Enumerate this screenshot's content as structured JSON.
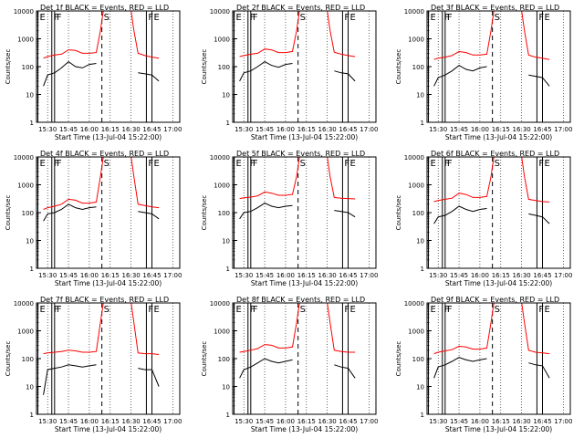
{
  "figure": {
    "xlabel": "Start Time (13-Jul-04 15:22:00)",
    "ylabel": "Counts/sec",
    "x_ticks": [
      "15:30",
      "15:45",
      "16:00",
      "16:15",
      "16:30",
      "16:45",
      "17:00"
    ],
    "y_ticks": [
      "1",
      "10",
      "100",
      "1000",
      "10000"
    ],
    "markers": [
      {
        "label": "E",
        "t": "15:23"
      },
      {
        "label": "F",
        "t": "15:33"
      },
      {
        "label": "F",
        "t": "15:35"
      },
      {
        "label": "S",
        "t": "16:09"
      },
      {
        "label": "F",
        "t": "16:41"
      },
      {
        "label": "E",
        "t": "16:45"
      }
    ],
    "colors": {
      "events": "#000000",
      "lld": "#ff0000"
    }
  },
  "chart_data": [
    {
      "type": "line",
      "title": "Det 1f BLACK = Events, RED = LLD",
      "xlabel": "Start Time (13-Jul-04 15:22:00)",
      "ylabel": "Counts/sec",
      "ylim": [
        1,
        10000
      ],
      "y_scale": "log",
      "x": [
        "15:27",
        "15:30",
        "15:35",
        "15:40",
        "15:45",
        "15:50",
        "15:55",
        "16:00",
        "16:05",
        "16:08",
        "16:10",
        "16:30",
        "16:32",
        "16:35",
        "16:40",
        "16:45",
        "16:50"
      ],
      "series": [
        {
          "name": "Events",
          "values": [
            20,
            50,
            60,
            90,
            150,
            100,
            90,
            120,
            130,
            null,
            null,
            null,
            null,
            60,
            55,
            50,
            30
          ]
        },
        {
          "name": "LLD",
          "values": [
            200,
            230,
            260,
            280,
            400,
            380,
            300,
            300,
            320,
            2000,
            10000,
            10000,
            2000,
            300,
            250,
            220,
            200
          ]
        }
      ]
    },
    {
      "type": "line",
      "title": "Det 2f BLACK = Events, RED = LLD",
      "xlabel": "Start Time (13-Jul-04 15:22:00)",
      "ylabel": "Counts/sec",
      "ylim": [
        1,
        10000
      ],
      "y_scale": "log",
      "x": [
        "15:27",
        "15:30",
        "15:35",
        "15:40",
        "15:45",
        "15:50",
        "15:55",
        "16:00",
        "16:05",
        "16:08",
        "16:10",
        "16:30",
        "16:32",
        "16:35",
        "16:40",
        "16:45",
        "16:50"
      ],
      "series": [
        {
          "name": "Events",
          "values": [
            30,
            60,
            70,
            100,
            150,
            110,
            95,
            120,
            130,
            null,
            null,
            null,
            null,
            70,
            60,
            55,
            30
          ]
        },
        {
          "name": "LLD",
          "values": [
            230,
            250,
            280,
            300,
            430,
            400,
            320,
            320,
            350,
            2000,
            10000,
            10000,
            2000,
            330,
            280,
            250,
            230
          ]
        }
      ]
    },
    {
      "type": "line",
      "title": "Det 3f BLACK = Events, RED = LLD",
      "xlabel": "Start Time (13-Jul-04 15:22:00)",
      "ylabel": "Counts/sec",
      "ylim": [
        1,
        10000
      ],
      "y_scale": "log",
      "x": [
        "15:27",
        "15:30",
        "15:35",
        "15:40",
        "15:45",
        "15:50",
        "15:55",
        "16:00",
        "16:05",
        "16:08",
        "16:10",
        "16:30",
        "16:32",
        "16:35",
        "16:40",
        "16:45",
        "16:50"
      ],
      "series": [
        {
          "name": "Events",
          "values": [
            20,
            40,
            50,
            70,
            110,
            80,
            70,
            90,
            100,
            null,
            null,
            null,
            null,
            50,
            45,
            40,
            20
          ]
        },
        {
          "name": "LLD",
          "values": [
            180,
            200,
            220,
            250,
            350,
            320,
            260,
            260,
            280,
            2000,
            10000,
            10000,
            2000,
            260,
            220,
            200,
            180
          ]
        }
      ]
    },
    {
      "type": "line",
      "title": "Det 4f BLACK = Events, RED = LLD",
      "xlabel": "Start Time (13-Jul-04 15:22:00)",
      "ylabel": "Counts/sec",
      "ylim": [
        1,
        10000
      ],
      "y_scale": "log",
      "x": [
        "15:27",
        "15:30",
        "15:35",
        "15:40",
        "15:45",
        "15:50",
        "15:55",
        "16:00",
        "16:05",
        "16:08",
        "16:10",
        "16:30",
        "16:32",
        "16:35",
        "16:40",
        "16:45",
        "16:50"
      ],
      "series": [
        {
          "name": "Events",
          "values": [
            50,
            90,
            100,
            130,
            200,
            150,
            130,
            150,
            160,
            null,
            null,
            null,
            null,
            110,
            100,
            90,
            60
          ]
        },
        {
          "name": "LLD",
          "values": [
            130,
            150,
            170,
            200,
            300,
            280,
            220,
            220,
            240,
            2000,
            10000,
            10000,
            2000,
            200,
            180,
            160,
            150
          ]
        }
      ]
    },
    {
      "type": "line",
      "title": "Det 5f BLACK = Events, RED = LLD",
      "xlabel": "Start Time (13-Jul-04 15:22:00)",
      "ylabel": "Counts/sec",
      "ylim": [
        1,
        10000
      ],
      "y_scale": "log",
      "x": [
        "15:27",
        "15:30",
        "15:35",
        "15:40",
        "15:45",
        "15:50",
        "15:55",
        "16:00",
        "16:05",
        "16:08",
        "16:10",
        "16:30",
        "16:32",
        "16:35",
        "16:40",
        "16:45",
        "16:50"
      ],
      "series": [
        {
          "name": "Events",
          "values": [
            60,
            100,
            110,
            150,
            220,
            170,
            150,
            170,
            180,
            null,
            null,
            null,
            null,
            120,
            110,
            100,
            70
          ]
        },
        {
          "name": "LLD",
          "values": [
            320,
            340,
            360,
            400,
            550,
            500,
            420,
            420,
            450,
            2000,
            10000,
            10000,
            2000,
            350,
            330,
            320,
            310
          ]
        }
      ]
    },
    {
      "type": "line",
      "title": "Det 6f BLACK = Events, RED = LLD",
      "xlabel": "Start Time (13-Jul-04 15:22:00)",
      "ylabel": "Counts/sec",
      "ylim": [
        1,
        10000
      ],
      "y_scale": "log",
      "x": [
        "15:27",
        "15:30",
        "15:35",
        "15:40",
        "15:45",
        "15:50",
        "15:55",
        "16:00",
        "16:05",
        "16:08",
        "16:10",
        "16:30",
        "16:32",
        "16:35",
        "16:40",
        "16:45",
        "16:50"
      ],
      "series": [
        {
          "name": "Events",
          "values": [
            40,
            70,
            80,
            110,
            170,
            130,
            110,
            130,
            140,
            null,
            null,
            null,
            null,
            90,
            80,
            70,
            40
          ]
        },
        {
          "name": "LLD",
          "values": [
            250,
            270,
            300,
            330,
            500,
            450,
            350,
            350,
            380,
            2000,
            10000,
            10000,
            2000,
            300,
            270,
            250,
            240
          ]
        }
      ]
    },
    {
      "type": "line",
      "title": "Det 7f BLACK = Events, RED = LLD",
      "xlabel": "Start Time (13-Jul-04 15:22:00)",
      "ylabel": "Counts/sec",
      "ylim": [
        1,
        10000
      ],
      "y_scale": "log",
      "x": [
        "15:27",
        "15:30",
        "15:35",
        "15:40",
        "15:45",
        "15:50",
        "15:55",
        "16:00",
        "16:05",
        "16:08",
        "16:10",
        "16:30",
        "16:32",
        "16:35",
        "16:40",
        "16:45",
        "16:50"
      ],
      "series": [
        {
          "name": "Events",
          "values": [
            5,
            40,
            45,
            50,
            60,
            55,
            50,
            55,
            60,
            null,
            null,
            null,
            null,
            45,
            40,
            40,
            10
          ]
        },
        {
          "name": "LLD",
          "values": [
            150,
            160,
            170,
            180,
            200,
            190,
            170,
            170,
            180,
            2000,
            10000,
            10000,
            2000,
            160,
            150,
            150,
            140
          ]
        }
      ]
    },
    {
      "type": "line",
      "title": "Det 8f BLACK = Events, RED = LLD",
      "xlabel": "Start Time (13-Jul-04 15:22:00)",
      "ylabel": "Counts/sec",
      "ylim": [
        1,
        10000
      ],
      "y_scale": "log",
      "x": [
        "15:27",
        "15:30",
        "15:35",
        "15:40",
        "15:45",
        "15:50",
        "15:55",
        "16:00",
        "16:05",
        "16:08",
        "16:10",
        "16:30",
        "16:32",
        "16:35",
        "16:40",
        "16:45",
        "16:50"
      ],
      "series": [
        {
          "name": "Events",
          "values": [
            20,
            40,
            50,
            70,
            100,
            80,
            70,
            80,
            90,
            null,
            null,
            null,
            null,
            60,
            50,
            45,
            20
          ]
        },
        {
          "name": "LLD",
          "values": [
            170,
            180,
            200,
            230,
            320,
            300,
            240,
            240,
            260,
            2000,
            10000,
            10000,
            2000,
            200,
            180,
            170,
            170
          ]
        }
      ]
    },
    {
      "type": "line",
      "title": "Det 9f BLACK = Events, RED = LLD",
      "xlabel": "Start Time (13-Jul-04 15:22:00)",
      "ylabel": "Counts/sec",
      "ylim": [
        1,
        10000
      ],
      "y_scale": "log",
      "x": [
        "15:27",
        "15:30",
        "15:35",
        "15:40",
        "15:45",
        "15:50",
        "15:55",
        "16:00",
        "16:05",
        "16:08",
        "16:10",
        "16:30",
        "16:32",
        "16:35",
        "16:40",
        "16:45",
        "16:50"
      ],
      "series": [
        {
          "name": "Events",
          "values": [
            20,
            50,
            60,
            80,
            110,
            90,
            80,
            90,
            100,
            null,
            null,
            null,
            null,
            70,
            60,
            55,
            20
          ]
        },
        {
          "name": "LLD",
          "values": [
            150,
            170,
            190,
            210,
            280,
            260,
            220,
            220,
            240,
            2000,
            10000,
            10000,
            2000,
            200,
            170,
            160,
            150
          ]
        }
      ]
    }
  ]
}
